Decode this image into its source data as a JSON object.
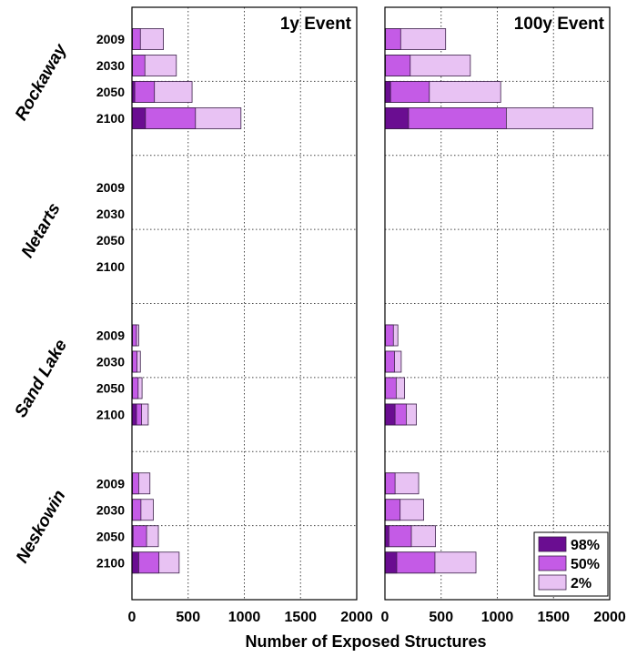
{
  "chart_data": {
    "type": "bar",
    "orientation": "horizontal",
    "stacked": true,
    "xlabel": "Number of Exposed Structures",
    "xlim": [
      0,
      2000
    ],
    "xticks": [
      0,
      500,
      1000,
      1500,
      2000
    ],
    "grid": true,
    "legend_placement": "bottom-right of second panel",
    "year_labels": [
      "2009",
      "2030",
      "2050",
      "2100"
    ],
    "site_labels": [
      "Rockaway",
      "Netarts",
      "Sand Lake",
      "Neskowin"
    ],
    "series": [
      {
        "name": "98%",
        "color": "#6a0d91"
      },
      {
        "name": "50%",
        "color": "#c45be6"
      },
      {
        "name": "2%",
        "color": "#e8c2f3"
      }
    ],
    "panels": [
      {
        "title": "1y Event",
        "sites": [
          {
            "name": "Rockaway",
            "bars": [
              {
                "year": "2009",
                "values": [
                  5,
                  75,
                  280
                ]
              },
              {
                "year": "2030",
                "values": [
                  5,
                  115,
                  395
                ]
              },
              {
                "year": "2050",
                "values": [
                  25,
                  200,
                  535
                ]
              },
              {
                "year": "2100",
                "values": [
                  120,
                  565,
                  970
                ]
              }
            ]
          },
          {
            "name": "Netarts",
            "bars": [
              {
                "year": "2009",
                "values": [
                  0,
                  0,
                  0
                ]
              },
              {
                "year": "2030",
                "values": [
                  0,
                  0,
                  0
                ]
              },
              {
                "year": "2050",
                "values": [
                  0,
                  0,
                  0
                ]
              },
              {
                "year": "2100",
                "values": [
                  0,
                  0,
                  0
                ]
              }
            ]
          },
          {
            "name": "Sand Lake",
            "bars": [
              {
                "year": "2009",
                "values": [
                  5,
                  40,
                  60
                ]
              },
              {
                "year": "2030",
                "values": [
                  5,
                  45,
                  75
                ]
              },
              {
                "year": "2050",
                "values": [
                  5,
                  55,
                  90
                ]
              },
              {
                "year": "2100",
                "values": [
                  40,
                  85,
                  145
                ]
              }
            ]
          },
          {
            "name": "Neskowin",
            "bars": [
              {
                "year": "2009",
                "values": [
                  5,
                  60,
                  160
                ]
              },
              {
                "year": "2030",
                "values": [
                  5,
                  80,
                  190
                ]
              },
              {
                "year": "2050",
                "values": [
                  10,
                  130,
                  235
                ]
              },
              {
                "year": "2100",
                "values": [
                  60,
                  240,
                  420
                ]
              }
            ]
          }
        ]
      },
      {
        "title": "100y Event",
        "sites": [
          {
            "name": "Rockaway",
            "bars": [
              {
                "year": "2009",
                "values": [
                  5,
                  140,
                  540
                ]
              },
              {
                "year": "2030",
                "values": [
                  5,
                  225,
                  760
                ]
              },
              {
                "year": "2050",
                "values": [
                  50,
                  395,
                  1030
                ]
              },
              {
                "year": "2100",
                "values": [
                  210,
                  1080,
                  1850
                ]
              }
            ]
          },
          {
            "name": "Netarts",
            "bars": [
              {
                "year": "2009",
                "values": [
                  0,
                  0,
                  0
                ]
              },
              {
                "year": "2030",
                "values": [
                  0,
                  0,
                  0
                ]
              },
              {
                "year": "2050",
                "values": [
                  0,
                  0,
                  0
                ]
              },
              {
                "year": "2100",
                "values": [
                  0,
                  0,
                  0
                ]
              }
            ]
          },
          {
            "name": "Sand Lake",
            "bars": [
              {
                "year": "2009",
                "values": [
                  5,
                  75,
                  115
                ]
              },
              {
                "year": "2030",
                "values": [
                  5,
                  85,
                  145
                ]
              },
              {
                "year": "2050",
                "values": [
                  5,
                  100,
                  175
                ]
              },
              {
                "year": "2100",
                "values": [
                  90,
                  190,
                  280
                ]
              }
            ]
          },
          {
            "name": "Neskowin",
            "bars": [
              {
                "year": "2009",
                "values": [
                  5,
                  90,
                  300
                ]
              },
              {
                "year": "2030",
                "values": [
                  5,
                  135,
                  345
                ]
              },
              {
                "year": "2050",
                "values": [
                  35,
                  235,
                  450
                ]
              },
              {
                "year": "2100",
                "values": [
                  105,
                  445,
                  810
                ]
              }
            ]
          }
        ]
      }
    ]
  }
}
